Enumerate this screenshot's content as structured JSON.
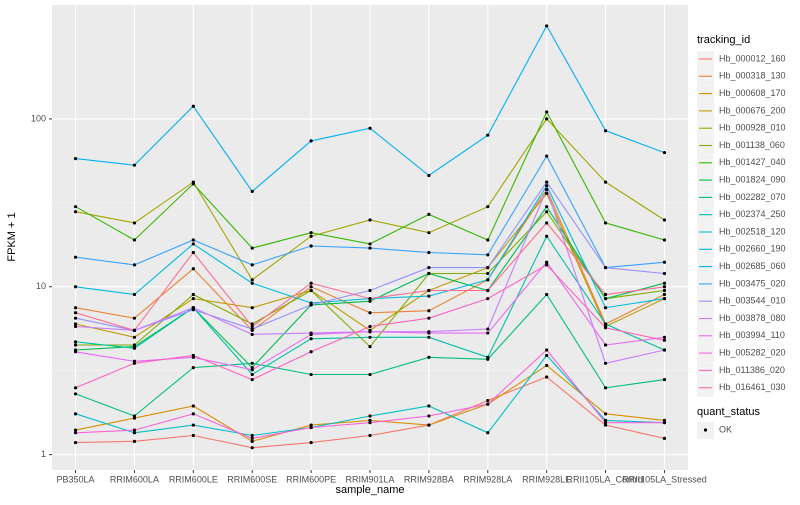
{
  "chart_data": {
    "type": "line",
    "log": true,
    "grid": true,
    "x_label": "sample_name",
    "y_label": "FPKM + 1",
    "legend_title": "tracking_id",
    "shape_legend_title": "quant_status",
    "shape_legend_items": [
      "OK"
    ],
    "categories": [
      "PB350LA",
      "RRIM600LA",
      "RRIM600LE",
      "RRIM600SE",
      "RRIM600PE",
      "RRIM901LA",
      "RRIM928BA",
      "RRIM928LA",
      "RRIM928LE",
      "RRII105LA_Control",
      "RRII105LA_Stressed"
    ],
    "ylim": [
      0.81,
      477
    ],
    "yticks": [
      1,
      10,
      100
    ],
    "series": [
      {
        "name": "Hb_000012_160",
        "color": "#F8766D",
        "values": [
          1.18,
          1.2,
          1.3,
          1.1,
          1.18,
          1.3,
          1.5,
          2.1,
          2.9,
          1.5,
          1.25
        ]
      },
      {
        "name": "Hb_000318_130",
        "color": "#EA8331",
        "values": [
          7.5,
          6.5,
          12.8,
          5.5,
          10,
          7,
          7.2,
          11,
          38,
          6,
          9
        ]
      },
      {
        "name": "Hb_000608_170",
        "color": "#D89000",
        "values": [
          1.4,
          1.65,
          1.95,
          1.2,
          1.5,
          1.6,
          1.5,
          2.0,
          3.4,
          1.75,
          1.6
        ]
      },
      {
        "name": "Hb_000676_200",
        "color": "#C09B00",
        "values": [
          6,
          5,
          8.5,
          7.5,
          9.5,
          5.5,
          9.5,
          13,
          36,
          5.8,
          8.5
        ]
      },
      {
        "name": "Hb_000928_010",
        "color": "#A3A500",
        "values": [
          28,
          24,
          42,
          11,
          20,
          25,
          21,
          30,
          100,
          42,
          25
        ]
      },
      {
        "name": "Hb_001138_060",
        "color": "#7CAE00",
        "values": [
          4.5,
          4.5,
          9,
          6,
          9.5,
          4.4,
          12,
          12,
          28,
          8.5,
          9.5
        ]
      },
      {
        "name": "Hb_001427_040",
        "color": "#39B600",
        "values": [
          30,
          19,
          41,
          17,
          21,
          18,
          27,
          19,
          110,
          24,
          19
        ]
      },
      {
        "name": "Hb_001824_090",
        "color": "#00BB4E",
        "values": [
          4.2,
          4.4,
          7.5,
          3.3,
          7.8,
          8.2,
          12,
          9.5,
          30,
          8.5,
          10.5
        ]
      },
      {
        "name": "Hb_002282_070",
        "color": "#00BF7D",
        "values": [
          2.3,
          1.7,
          3.3,
          3.5,
          3.0,
          3.0,
          3.8,
          3.7,
          9,
          2.5,
          2.8
        ]
      },
      {
        "name": "Hb_002374_250",
        "color": "#00C1A3",
        "values": [
          4.7,
          4.3,
          7.5,
          3.0,
          4.9,
          5.0,
          5.0,
          3.8,
          20,
          6,
          4.2
        ]
      },
      {
        "name": "Hb_002518_120",
        "color": "#00BFC4",
        "values": [
          1.75,
          1.35,
          1.5,
          1.3,
          1.45,
          1.7,
          1.95,
          1.35,
          3.9,
          1.6,
          1.55
        ]
      },
      {
        "name": "Hb_002660_190",
        "color": "#00BAE0",
        "values": [
          10,
          9,
          18,
          10.5,
          8,
          8.5,
          8.8,
          11,
          40,
          7.5,
          8.5
        ]
      },
      {
        "name": "Hb_002685_060",
        "color": "#00B0F6",
        "values": [
          58,
          53,
          119,
          37,
          74,
          88,
          46,
          80,
          358,
          85,
          63
        ]
      },
      {
        "name": "Hb_003475_020",
        "color": "#35A2FF",
        "values": [
          15,
          13.5,
          19,
          13.5,
          17.5,
          17,
          16,
          15.5,
          60,
          13,
          14
        ]
      },
      {
        "name": "Hb_003544_010",
        "color": "#9590FF",
        "values": [
          6.5,
          5.5,
          7.3,
          5.6,
          7.8,
          9.5,
          13,
          13,
          42,
          13,
          12
        ]
      },
      {
        "name": "Hb_003878_080",
        "color": "#C77CFF",
        "values": [
          5.8,
          5.5,
          7.5,
          5.2,
          5.3,
          5.4,
          5.4,
          5.6,
          38,
          3.5,
          4.2
        ]
      },
      {
        "name": "Hb_003994_110",
        "color": "#E76BF3",
        "values": [
          4.1,
          3.6,
          3.8,
          3.2,
          5.2,
          5.4,
          5.3,
          5.3,
          14,
          4.5,
          5.0
        ]
      },
      {
        "name": "Hb_005282_020",
        "color": "#FA62DB",
        "values": [
          1.35,
          1.4,
          1.75,
          1.25,
          1.45,
          1.55,
          1.7,
          2.0,
          4.2,
          1.55,
          1.55
        ]
      },
      {
        "name": "Hb_011386_020",
        "color": "#FF62BC",
        "values": [
          2.5,
          3.5,
          3.9,
          2.8,
          4.1,
          5.8,
          6.5,
          8.5,
          13.5,
          5.7,
          4.8
        ]
      },
      {
        "name": "Hb_016461_030",
        "color": "#FF6C91",
        "values": [
          7,
          5.5,
          16,
          5.8,
          10.5,
          8.5,
          9.5,
          9.5,
          24,
          9,
          10
        ]
      }
    ]
  }
}
